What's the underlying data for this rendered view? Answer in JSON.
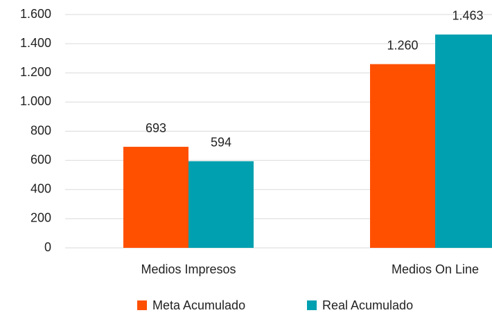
{
  "chart_data": {
    "type": "bar",
    "categories": [
      "Medios Impresos",
      "Medios On Line"
    ],
    "series": [
      {
        "name": "Meta Acumulado",
        "color": "#ff5000",
        "values": [
          693,
          1260
        ],
        "value_labels": [
          "693",
          "1.260"
        ]
      },
      {
        "name": "Real Acumulado",
        "color": "#00a0b0",
        "values": [
          594,
          1463
        ],
        "value_labels": [
          "594",
          "1.463"
        ]
      }
    ],
    "ylim": [
      0,
      1600
    ],
    "yticks": [
      0,
      200,
      400,
      600,
      800,
      {
        "value": 1000,
        "label": "1.000"
      },
      {
        "value": 1200,
        "label": "1.200"
      },
      {
        "value": 1400,
        "label": "1.400"
      },
      {
        "value": 1600,
        "label": "1.600"
      }
    ],
    "grid": true,
    "legend": "bottom"
  }
}
